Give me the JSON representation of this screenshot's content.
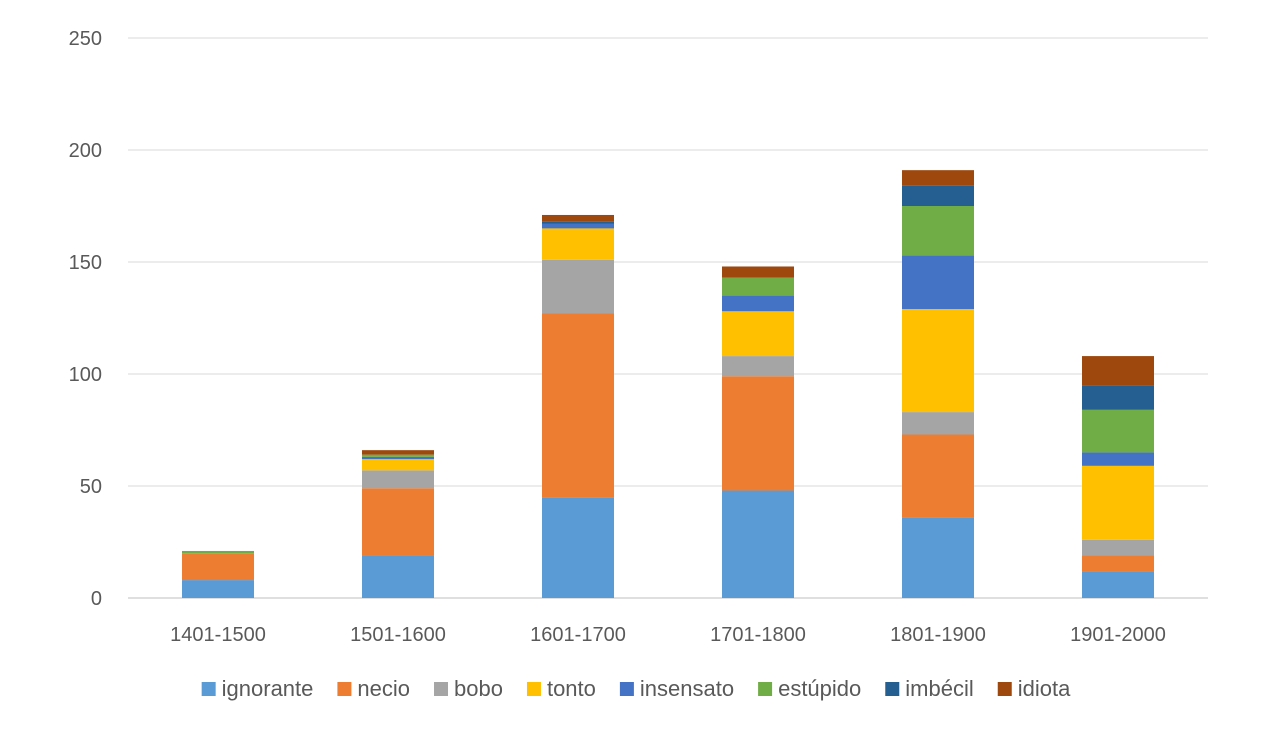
{
  "chart_data": {
    "type": "bar",
    "stacked": true,
    "title": "",
    "xlabel": "",
    "ylabel": "",
    "categories": [
      "1401-1500",
      "1501-1600",
      "1601-1700",
      "1701-1800",
      "1801-1900",
      "1901-2000"
    ],
    "ylim": [
      0,
      250
    ],
    "yticks": [
      0,
      50,
      100,
      150,
      200,
      250
    ],
    "grid": true,
    "legend_position": "bottom",
    "series": [
      {
        "name": "ignorante",
        "color": "#5B9BD5",
        "values": [
          8,
          19,
          45,
          48,
          36,
          12
        ]
      },
      {
        "name": "necio",
        "color": "#ED7D31",
        "values": [
          12,
          30,
          82,
          51,
          37,
          7
        ]
      },
      {
        "name": "bobo",
        "color": "#A5A5A5",
        "values": [
          0,
          8,
          24,
          9,
          10,
          7
        ]
      },
      {
        "name": "tonto",
        "color": "#FFC000",
        "values": [
          0,
          5,
          14,
          20,
          46,
          33
        ]
      },
      {
        "name": "insensato",
        "color": "#4472C4",
        "values": [
          0,
          1,
          2,
          7,
          24,
          6
        ]
      },
      {
        "name": "estúpido",
        "color": "#70AD47",
        "values": [
          1,
          1,
          0,
          8,
          22,
          19
        ]
      },
      {
        "name": "imbécil",
        "color": "#255E91",
        "values": [
          0,
          0,
          1,
          0,
          9,
          11
        ]
      },
      {
        "name": "idiota",
        "color": "#9E480E",
        "values": [
          0,
          2,
          3,
          5,
          7,
          13
        ]
      }
    ]
  }
}
